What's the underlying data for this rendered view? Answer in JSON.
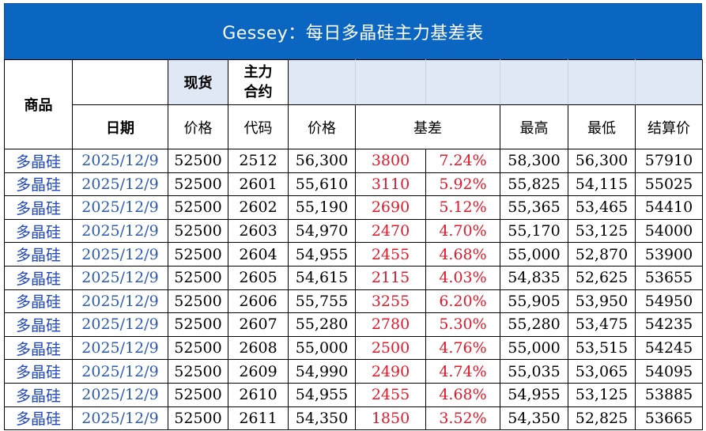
{
  "title": "Gessey：每日多晶硅主力基差表",
  "header": {
    "product": "商品",
    "spot": "现货",
    "main_contract": "主力\n合约",
    "date": "日期",
    "spot_price": "价格",
    "code": "代码",
    "price": "价格",
    "basis": "基差",
    "high": "最高",
    "low": "最低",
    "settle": "结算价"
  },
  "rows": [
    {
      "product": "多晶硅",
      "date": "2025/12/9",
      "spot": "52500",
      "code": "2512",
      "price": "56,300",
      "basis": "3800",
      "basis_pct": "7.24%",
      "high": "58,300",
      "low": "56,300",
      "settle": "57910"
    },
    {
      "product": "多晶硅",
      "date": "2025/12/9",
      "spot": "52500",
      "code": "2601",
      "price": "55,610",
      "basis": "3110",
      "basis_pct": "5.92%",
      "high": "55,825",
      "low": "54,115",
      "settle": "55025"
    },
    {
      "product": "多晶硅",
      "date": "2025/12/9",
      "spot": "52500",
      "code": "2602",
      "price": "55,190",
      "basis": "2690",
      "basis_pct": "5.12%",
      "high": "55,365",
      "low": "53,465",
      "settle": "54410"
    },
    {
      "product": "多晶硅",
      "date": "2025/12/9",
      "spot": "52500",
      "code": "2603",
      "price": "54,970",
      "basis": "2470",
      "basis_pct": "4.70%",
      "high": "55,170",
      "low": "53,125",
      "settle": "54000"
    },
    {
      "product": "多晶硅",
      "date": "2025/12/9",
      "spot": "52500",
      "code": "2604",
      "price": "54,955",
      "basis": "2455",
      "basis_pct": "4.68%",
      "high": "55,000",
      "low": "52,870",
      "settle": "53900"
    },
    {
      "product": "多晶硅",
      "date": "2025/12/9",
      "spot": "52500",
      "code": "2605",
      "price": "54,615",
      "basis": "2115",
      "basis_pct": "4.03%",
      "high": "54,835",
      "low": "52,625",
      "settle": "53655"
    },
    {
      "product": "多晶硅",
      "date": "2025/12/9",
      "spot": "52500",
      "code": "2606",
      "price": "55,755",
      "basis": "3255",
      "basis_pct": "6.20%",
      "high": "55,905",
      "low": "53,950",
      "settle": "54950"
    },
    {
      "product": "多晶硅",
      "date": "2025/12/9",
      "spot": "52500",
      "code": "2607",
      "price": "55,280",
      "basis": "2780",
      "basis_pct": "5.30%",
      "high": "55,280",
      "low": "53,475",
      "settle": "54235"
    },
    {
      "product": "多晶硅",
      "date": "2025/12/9",
      "spot": "52500",
      "code": "2608",
      "price": "55,000",
      "basis": "2500",
      "basis_pct": "4.76%",
      "high": "55,000",
      "low": "53,515",
      "settle": "54245"
    },
    {
      "product": "多晶硅",
      "date": "2025/12/9",
      "spot": "52500",
      "code": "2609",
      "price": "54,990",
      "basis": "2490",
      "basis_pct": "4.74%",
      "high": "55,035",
      "low": "53,065",
      "settle": "54095"
    },
    {
      "product": "多晶硅",
      "date": "2025/12/9",
      "spot": "52500",
      "code": "2610",
      "price": "54,955",
      "basis": "2455",
      "basis_pct": "4.68%",
      "high": "54,955",
      "low": "53,125",
      "settle": "53885"
    },
    {
      "product": "多晶硅",
      "date": "2025/12/9",
      "spot": "52500",
      "code": "2611",
      "price": "54,350",
      "basis": "1850",
      "basis_pct": "3.52%",
      "high": "54,350",
      "low": "52,825",
      "settle": "53665"
    }
  ],
  "colors": {
    "title_bg": "#0a66c0",
    "header_fill": "#dfe8f4",
    "product_text": "#1f46c2",
    "date_text": "#2e5bb5",
    "basis_text": "#e0192a"
  }
}
